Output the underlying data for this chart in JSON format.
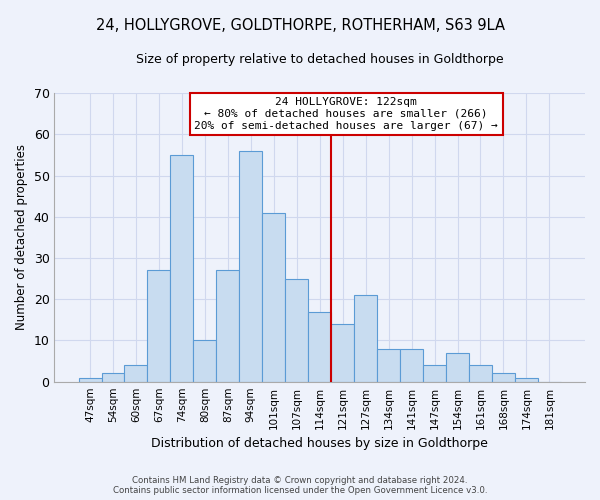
{
  "title": "24, HOLLYGROVE, GOLDTHORPE, ROTHERHAM, S63 9LA",
  "subtitle": "Size of property relative to detached houses in Goldthorpe",
  "xlabel": "Distribution of detached houses by size in Goldthorpe",
  "ylabel": "Number of detached properties",
  "bar_color": "#c8dcf0",
  "bar_edge_color": "#5b9bd5",
  "background_color": "#eef2fb",
  "grid_color": "#d0d8ee",
  "categories": [
    "47sqm",
    "54sqm",
    "60sqm",
    "67sqm",
    "74sqm",
    "80sqm",
    "87sqm",
    "94sqm",
    "101sqm",
    "107sqm",
    "114sqm",
    "121sqm",
    "127sqm",
    "134sqm",
    "141sqm",
    "147sqm",
    "154sqm",
    "161sqm",
    "168sqm",
    "174sqm",
    "181sqm"
  ],
  "values": [
    1,
    2,
    4,
    27,
    55,
    10,
    27,
    56,
    41,
    25,
    17,
    14,
    21,
    8,
    8,
    4,
    7,
    4,
    2,
    1,
    0
  ],
  "ylim": [
    0,
    70
  ],
  "yticks": [
    0,
    10,
    20,
    30,
    40,
    50,
    60,
    70
  ],
  "property_line_color": "#cc0000",
  "annotation_title": "24 HOLLYGROVE: 122sqm",
  "annotation_line1": "← 80% of detached houses are smaller (266)",
  "annotation_line2": "20% of semi-detached houses are larger (67) →",
  "annotation_box_color": "#ffffff",
  "annotation_border_color": "#cc0000",
  "footer_line1": "Contains HM Land Registry data © Crown copyright and database right 2024.",
  "footer_line2": "Contains public sector information licensed under the Open Government Licence v3.0."
}
